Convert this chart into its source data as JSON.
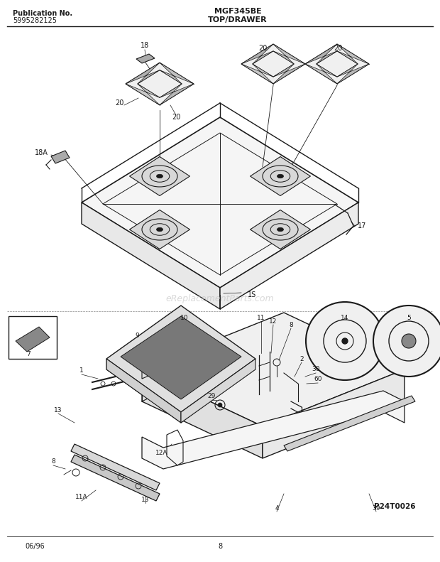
{
  "title_center": "MGF345BE",
  "subtitle_center": "TOP/DRAWER",
  "pub_no_label": "Publication No.",
  "pub_no_value": "5995282125",
  "page_number": "8",
  "date_label": "06/96",
  "part_number": "P24T0026",
  "background_color": "#ffffff",
  "line_color": "#1a1a1a",
  "text_color": "#1a1a1a",
  "figsize": [
    6.2,
    7.91
  ],
  "dpi": 100,
  "watermark_text": "eReplacementParts.com",
  "watermark_color": "#c0c0c0"
}
